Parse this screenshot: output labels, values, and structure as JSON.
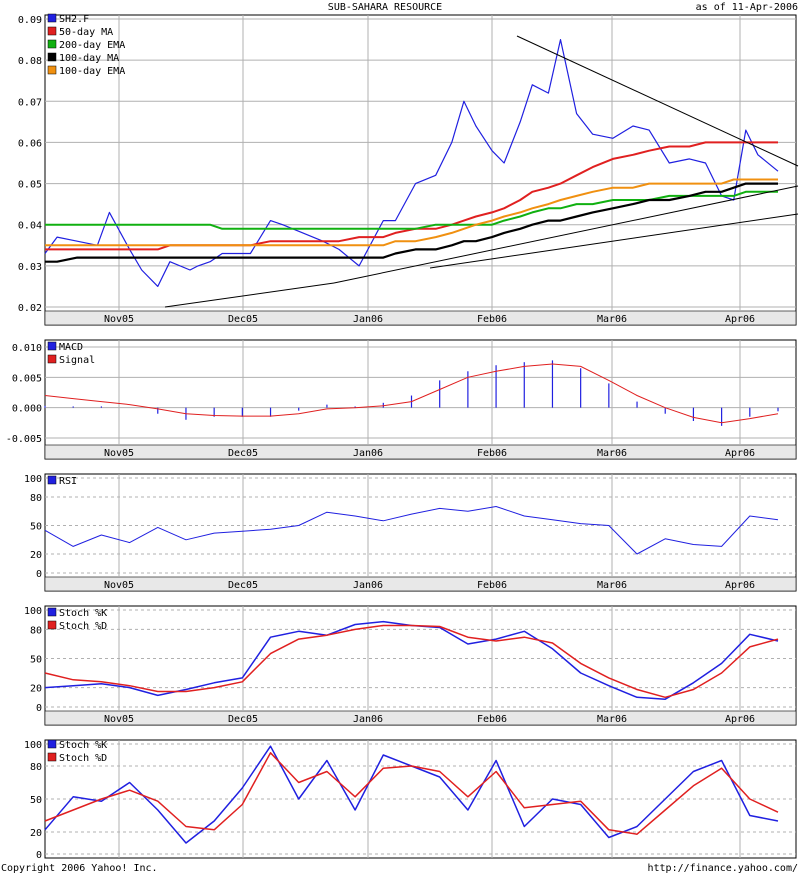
{
  "header": {
    "title": "SUB-SAHARA RESOURCE",
    "asof": "as of 11-Apr-2006"
  },
  "footer": {
    "copyright": "Copyright 2006 Yahoo! Inc.",
    "url": "http://finance.yahoo.com/"
  },
  "colors": {
    "price": "#2020e0",
    "ma50": "#e02020",
    "ema200": "#10b010",
    "ma100": "#000000",
    "ema100": "#f09010",
    "grid": "#b0b0b0",
    "axis_band": "#e8e8e8"
  },
  "chart_data": [
    {
      "type": "line",
      "name": "price",
      "xaxis_labels": [
        "Nov05",
        "Dec05",
        "Jan06",
        "Feb06",
        "Mar06",
        "Apr06"
      ],
      "x_range": [
        "2005-10-11",
        "2006-04-11"
      ],
      "ylim": [
        0.02,
        0.09
      ],
      "yticks": [
        "0.02",
        "0.03",
        "0.04",
        "0.05",
        "0.06",
        "0.07",
        "0.08",
        "0.09"
      ],
      "legend": [
        "SH2.F",
        "50-day MA",
        "200-day EMA",
        "100-day MA",
        "100-day EMA"
      ],
      "x": [
        "2005-10-11",
        "2005-10-14",
        "2005-10-19",
        "2005-10-24",
        "2005-10-27",
        "2005-11-01",
        "2005-11-04",
        "2005-11-08",
        "2005-11-11",
        "2005-11-16",
        "2005-11-18",
        "2005-11-21",
        "2005-11-24",
        "2005-12-01",
        "2005-12-06",
        "2005-12-09",
        "2005-12-14",
        "2005-12-19",
        "2005-12-23",
        "2005-12-28",
        "2006-01-03",
        "2006-01-06",
        "2006-01-11",
        "2006-01-16",
        "2006-01-20",
        "2006-01-23",
        "2006-01-26",
        "2006-01-30",
        "2006-02-02",
        "2006-02-06",
        "2006-02-09",
        "2006-02-13",
        "2006-02-16",
        "2006-02-20",
        "2006-02-24",
        "2006-03-01",
        "2006-03-06",
        "2006-03-10",
        "2006-03-15",
        "2006-03-20",
        "2006-03-24",
        "2006-03-28",
        "2006-03-31",
        "2006-04-03",
        "2006-04-06",
        "2006-04-11"
      ],
      "series": [
        {
          "name": "SH2.F",
          "values": [
            0.033,
            0.037,
            0.036,
            0.035,
            0.043,
            0.034,
            0.029,
            0.025,
            0.031,
            0.029,
            0.03,
            0.031,
            0.033,
            0.033,
            0.041,
            0.04,
            0.038,
            0.036,
            0.034,
            0.03,
            0.041,
            0.041,
            0.05,
            0.052,
            0.06,
            0.07,
            0.064,
            0.058,
            0.055,
            0.065,
            0.074,
            0.072,
            0.085,
            0.067,
            0.062,
            0.061,
            0.064,
            0.063,
            0.055,
            0.056,
            0.055,
            0.047,
            0.046,
            0.063,
            0.057,
            0.053
          ]
        },
        {
          "name": "50-day MA",
          "values": [
            0.034,
            0.034,
            0.034,
            0.034,
            0.034,
            0.034,
            0.034,
            0.034,
            0.035,
            0.035,
            0.035,
            0.035,
            0.035,
            0.035,
            0.036,
            0.036,
            0.036,
            0.036,
            0.036,
            0.037,
            0.037,
            0.038,
            0.039,
            0.039,
            0.04,
            0.041,
            0.042,
            0.043,
            0.044,
            0.046,
            0.048,
            0.049,
            0.05,
            0.052,
            0.054,
            0.056,
            0.057,
            0.058,
            0.059,
            0.059,
            0.06,
            0.06,
            0.06,
            0.06,
            0.06,
            0.06
          ]
        },
        {
          "name": "200-day EMA",
          "values": [
            0.04,
            0.04,
            0.04,
            0.04,
            0.04,
            0.04,
            0.04,
            0.04,
            0.04,
            0.04,
            0.04,
            0.04,
            0.039,
            0.039,
            0.039,
            0.039,
            0.039,
            0.039,
            0.039,
            0.039,
            0.039,
            0.039,
            0.039,
            0.04,
            0.04,
            0.04,
            0.04,
            0.04,
            0.041,
            0.042,
            0.043,
            0.044,
            0.044,
            0.045,
            0.045,
            0.046,
            0.046,
            0.046,
            0.047,
            0.047,
            0.047,
            0.047,
            0.047,
            0.048,
            0.048,
            0.048
          ]
        },
        {
          "name": "100-day MA",
          "values": [
            0.031,
            0.031,
            0.032,
            0.032,
            0.032,
            0.032,
            0.032,
            0.032,
            0.032,
            0.032,
            0.032,
            0.032,
            0.032,
            0.032,
            0.032,
            0.032,
            0.032,
            0.032,
            0.032,
            0.032,
            0.032,
            0.033,
            0.034,
            0.034,
            0.035,
            0.036,
            0.036,
            0.037,
            0.038,
            0.039,
            0.04,
            0.041,
            0.041,
            0.042,
            0.043,
            0.044,
            0.045,
            0.046,
            0.046,
            0.047,
            0.048,
            0.048,
            0.049,
            0.05,
            0.05,
            0.05
          ]
        },
        {
          "name": "100-day EMA",
          "values": [
            0.035,
            0.035,
            0.035,
            0.035,
            0.035,
            0.035,
            0.035,
            0.035,
            0.035,
            0.035,
            0.035,
            0.035,
            0.035,
            0.035,
            0.035,
            0.035,
            0.035,
            0.035,
            0.035,
            0.035,
            0.035,
            0.036,
            0.036,
            0.037,
            0.038,
            0.039,
            0.04,
            0.041,
            0.042,
            0.043,
            0.044,
            0.045,
            0.046,
            0.047,
            0.048,
            0.049,
            0.049,
            0.05,
            0.05,
            0.05,
            0.05,
            0.05,
            0.051,
            0.051,
            0.051,
            0.051
          ]
        }
      ]
    },
    {
      "type": "bar",
      "name": "macd",
      "ylim": [
        -0.0055,
        0.0105
      ],
      "yticks": [
        "0.010",
        "0.005",
        "0.000",
        "-0.005"
      ],
      "legend": [
        "MACD",
        "Signal"
      ],
      "x": [
        "2005-10-11",
        "2005-10-18",
        "2005-10-25",
        "2005-11-01",
        "2005-11-08",
        "2005-11-15",
        "2005-11-22",
        "2005-11-29",
        "2005-12-06",
        "2005-12-13",
        "2005-12-20",
        "2005-12-27",
        "2006-01-03",
        "2006-01-10",
        "2006-01-17",
        "2006-01-24",
        "2006-01-31",
        "2006-02-07",
        "2006-02-14",
        "2006-02-21",
        "2006-02-28",
        "2006-03-07",
        "2006-03-14",
        "2006-03-21",
        "2006-03-28",
        "2006-04-04",
        "2006-04-11"
      ],
      "series": [
        {
          "name": "MACD",
          "values": [
            0.0003,
            0.0002,
            0.0002,
            0.0,
            -0.001,
            -0.002,
            -0.0015,
            -0.0015,
            -0.0015,
            -0.0005,
            0.0005,
            0.0002,
            0.0008,
            0.002,
            0.0045,
            0.006,
            0.007,
            0.0075,
            0.0078,
            0.0065,
            0.004,
            0.001,
            -0.001,
            -0.0022,
            -0.003,
            -0.0015,
            -0.0006
          ]
        },
        {
          "name": "Signal",
          "values": [
            0.002,
            0.0015,
            0.001,
            0.0005,
            -0.0002,
            -0.001,
            -0.0013,
            -0.0014,
            -0.0014,
            -0.001,
            -0.0002,
            0.0,
            0.0003,
            0.001,
            0.003,
            0.005,
            0.006,
            0.0068,
            0.0072,
            0.0068,
            0.0045,
            0.002,
            0.0,
            -0.0016,
            -0.0025,
            -0.0018,
            -0.001
          ]
        }
      ]
    },
    {
      "type": "line",
      "name": "rsi",
      "ylim": [
        0,
        100
      ],
      "yticks": [
        "0",
        "20",
        "50",
        "80",
        "100"
      ],
      "legend": [
        "RSI"
      ],
      "x": [
        "2005-10-11",
        "2005-10-18",
        "2005-10-25",
        "2005-11-01",
        "2005-11-08",
        "2005-11-15",
        "2005-11-22",
        "2005-11-29",
        "2005-12-06",
        "2005-12-13",
        "2005-12-20",
        "2005-12-27",
        "2006-01-03",
        "2006-01-10",
        "2006-01-17",
        "2006-01-24",
        "2006-01-31",
        "2006-02-07",
        "2006-02-14",
        "2006-02-21",
        "2006-02-28",
        "2006-03-07",
        "2006-03-14",
        "2006-03-21",
        "2006-03-28",
        "2006-04-04",
        "2006-04-11"
      ],
      "series": [
        {
          "name": "RSI",
          "values": [
            45,
            28,
            40,
            32,
            48,
            35,
            42,
            44,
            46,
            50,
            64,
            60,
            55,
            62,
            68,
            65,
            70,
            60,
            56,
            52,
            50,
            20,
            36,
            30,
            28,
            60,
            56
          ]
        }
      ]
    },
    {
      "type": "line",
      "name": "stoch1",
      "ylim": [
        0,
        100
      ],
      "yticks": [
        "0",
        "20",
        "50",
        "80",
        "100"
      ],
      "legend": [
        "Stoch %K",
        "Stoch %D"
      ],
      "x": [
        "2005-10-11",
        "2005-10-18",
        "2005-10-25",
        "2005-11-01",
        "2005-11-08",
        "2005-11-15",
        "2005-11-22",
        "2005-11-29",
        "2005-12-06",
        "2005-12-13",
        "2005-12-20",
        "2005-12-27",
        "2006-01-03",
        "2006-01-10",
        "2006-01-17",
        "2006-01-24",
        "2006-01-31",
        "2006-02-07",
        "2006-02-14",
        "2006-02-21",
        "2006-02-28",
        "2006-03-07",
        "2006-03-14",
        "2006-03-21",
        "2006-03-28",
        "2006-04-04",
        "2006-04-11"
      ],
      "series": [
        {
          "name": "Stoch %K",
          "values": [
            20,
            22,
            24,
            20,
            12,
            18,
            25,
            30,
            72,
            78,
            74,
            85,
            88,
            84,
            82,
            65,
            70,
            78,
            60,
            35,
            22,
            10,
            8,
            25,
            45,
            75,
            68
          ]
        },
        {
          "name": "Stoch %D",
          "values": [
            35,
            28,
            26,
            22,
            16,
            16,
            20,
            26,
            55,
            70,
            74,
            80,
            84,
            84,
            83,
            72,
            68,
            72,
            66,
            45,
            30,
            18,
            10,
            18,
            35,
            62,
            70
          ]
        }
      ]
    },
    {
      "type": "line",
      "name": "stoch2",
      "ylim": [
        0,
        100
      ],
      "yticks": [
        "0",
        "20",
        "50",
        "80",
        "100"
      ],
      "legend": [
        "Stoch %K",
        "Stoch %D"
      ],
      "x": [
        "2005-10-11",
        "2005-10-18",
        "2005-10-25",
        "2005-11-01",
        "2005-11-08",
        "2005-11-15",
        "2005-11-22",
        "2005-11-29",
        "2005-12-06",
        "2005-12-13",
        "2005-12-20",
        "2005-12-27",
        "2006-01-03",
        "2006-01-10",
        "2006-01-17",
        "2006-01-24",
        "2006-01-31",
        "2006-02-07",
        "2006-02-14",
        "2006-02-21",
        "2006-02-28",
        "2006-03-07",
        "2006-03-14",
        "2006-03-21",
        "2006-03-28",
        "2006-04-04",
        "2006-04-11"
      ],
      "series": [
        {
          "name": "Stoch %K",
          "values": [
            22,
            52,
            48,
            65,
            40,
            10,
            30,
            60,
            98,
            50,
            85,
            40,
            90,
            80,
            70,
            40,
            85,
            25,
            50,
            45,
            15,
            25,
            50,
            75,
            85,
            35,
            30
          ]
        },
        {
          "name": "Stoch %D",
          "values": [
            30,
            40,
            50,
            58,
            48,
            25,
            22,
            45,
            92,
            65,
            75,
            52,
            78,
            80,
            75,
            52,
            75,
            42,
            45,
            48,
            22,
            18,
            40,
            62,
            78,
            50,
            38
          ]
        }
      ]
    }
  ]
}
